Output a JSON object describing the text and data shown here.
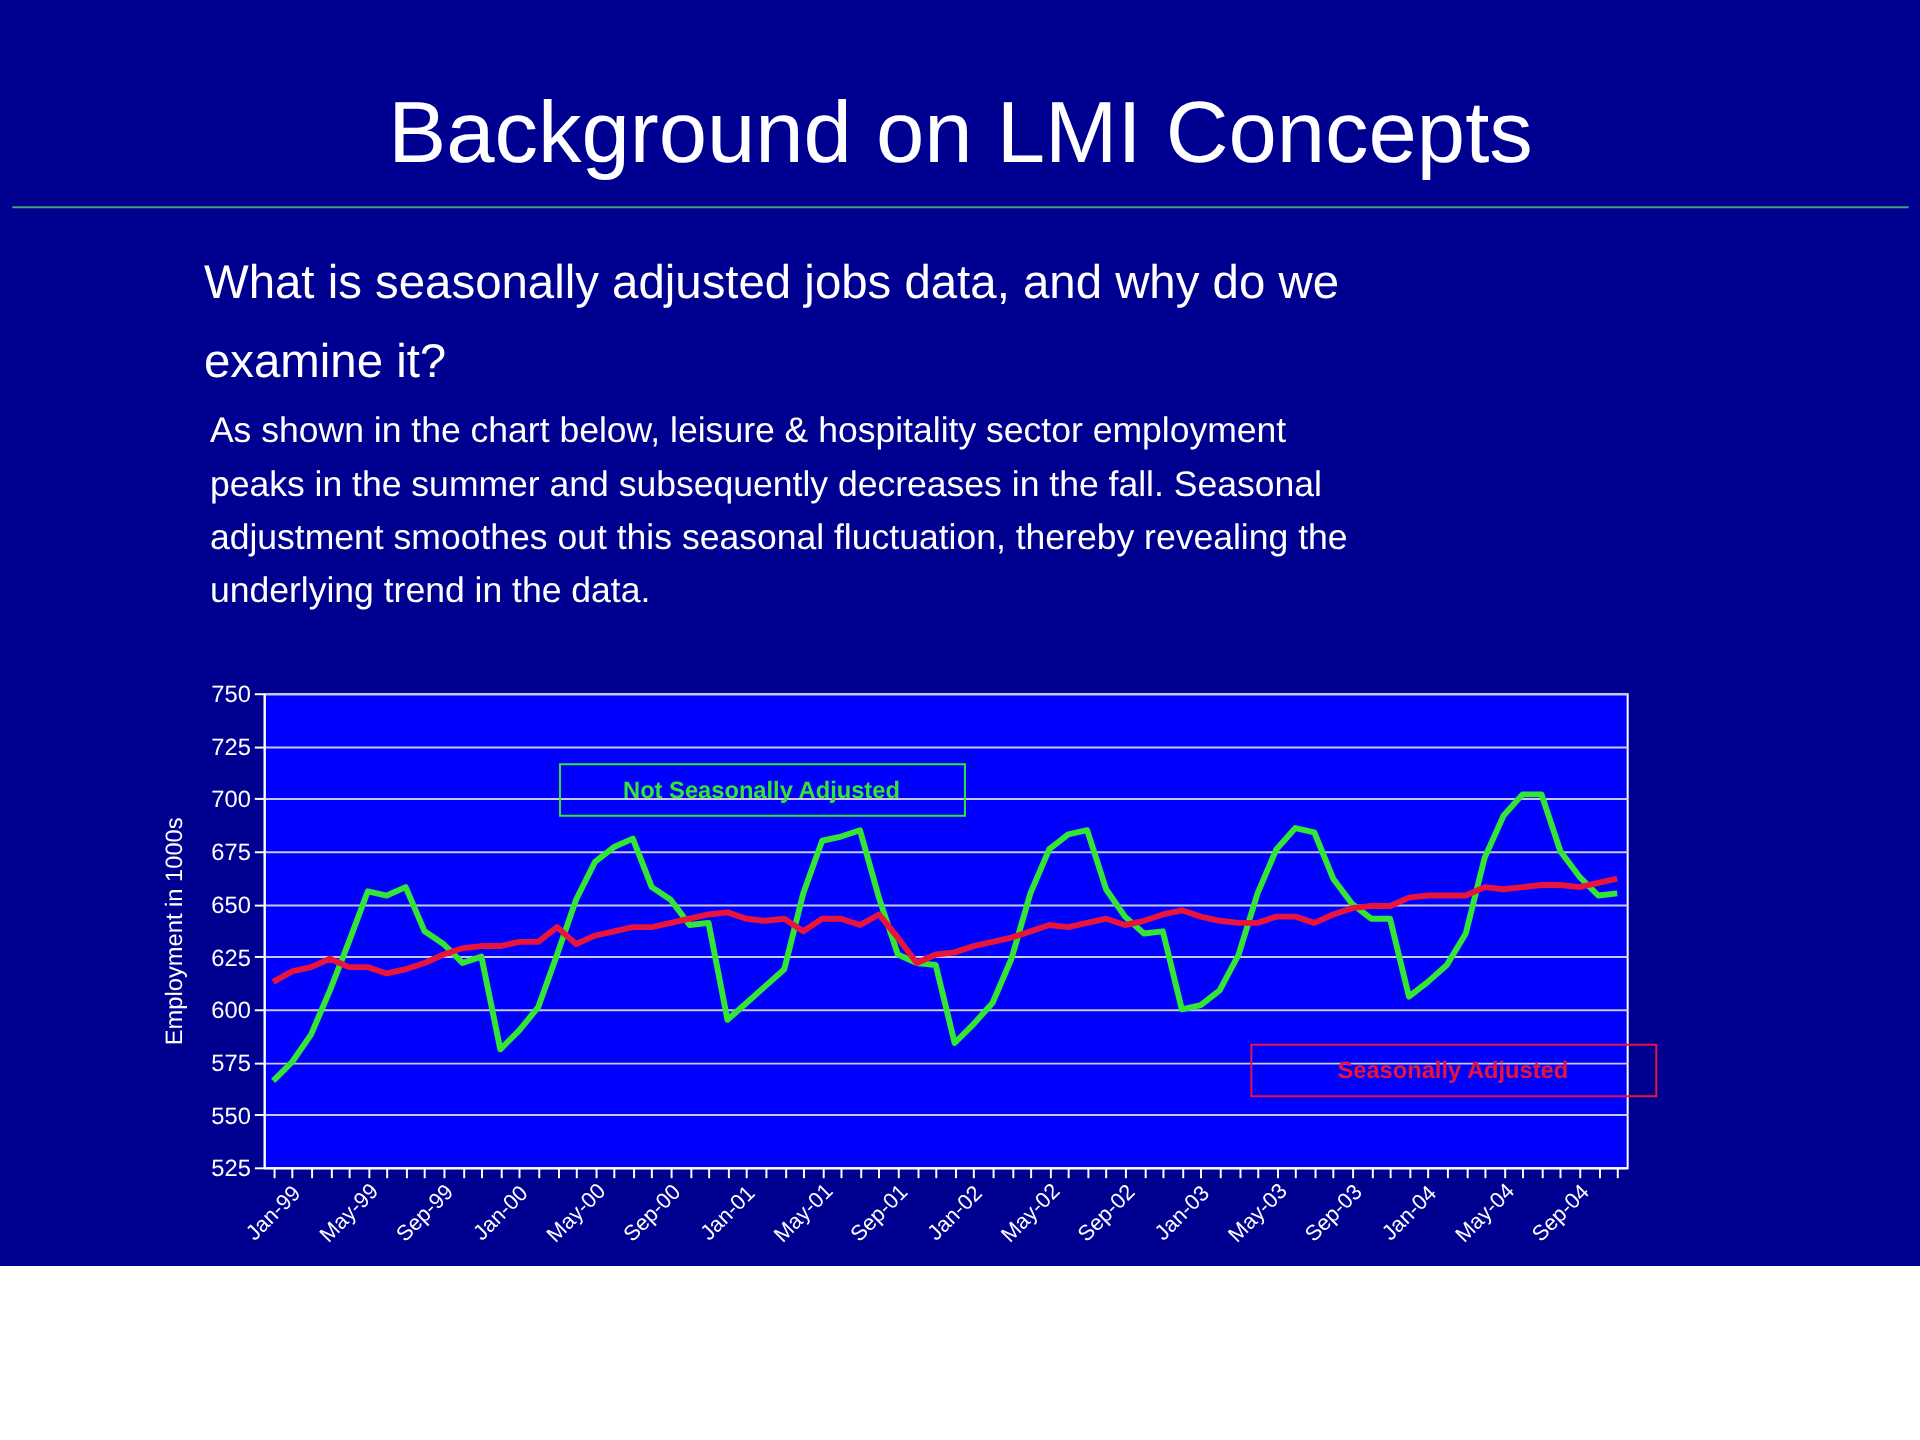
{
  "chart_data": {
    "type": "line",
    "title": "Background on LMI Concepts",
    "subtitle": "What is seasonally adjusted jobs data, and why do we examine it?",
    "annotations": [
      "As shown in the chart below, leisure & hospitality sector employment peaks in the summer and subsequently decreases in the fall. Seasonal adjustment smoothes out this seasonal fluctuation, thereby revealing the underlying trend in the data."
    ],
    "ylabel": "Employment in 1000s",
    "categories": [
      "Jan-99",
      null,
      null,
      null,
      "May-99",
      null,
      null,
      null,
      "Sep-99",
      null,
      null,
      null,
      "Jan-00",
      null,
      null,
      null,
      "May-00",
      null,
      null,
      null,
      "Sep-00",
      null,
      null,
      null,
      "Jan-01",
      null,
      null,
      null,
      "May-01",
      null,
      null,
      null,
      "Sep-01",
      null,
      null,
      null,
      "Jan-02",
      null,
      null,
      null,
      "May-02",
      null,
      null,
      null,
      "Sep-02",
      null,
      null,
      null,
      "Jan-03",
      null,
      null,
      null,
      "May-03",
      null,
      null,
      null,
      "Sep-03",
      null,
      null,
      null,
      "Jan-04",
      null,
      null,
      null,
      "May-04",
      null,
      null,
      null,
      "Sep-04",
      null,
      null,
      null
    ],
    "series": [
      {
        "name": "Not Seasonally Adjusted",
        "color": "#33e633",
        "values": [
          566,
          575,
          588,
          609,
          632,
          656,
          654,
          658,
          637,
          631,
          622,
          625,
          581,
          590,
          601,
          626,
          652,
          670,
          677,
          681,
          658,
          652,
          640,
          641,
          595,
          603,
          611,
          619,
          655,
          680,
          682,
          685,
          653,
          626,
          622,
          621,
          584,
          593,
          603,
          624,
          655,
          676,
          683,
          685,
          657,
          644,
          636,
          637,
          600,
          602,
          609,
          626,
          655,
          676,
          686,
          684,
          662,
          650,
          643,
          643,
          606,
          613,
          621,
          636,
          672,
          692,
          702,
          702,
          675,
          663,
          654,
          655
        ]
      },
      {
        "name": "Seasonally Adjusted",
        "color": "#e8143c",
        "values": [
          613,
          618,
          620,
          624,
          620,
          620,
          617,
          619,
          622,
          626,
          629,
          630,
          630,
          632,
          632,
          639,
          631,
          635,
          637,
          639,
          639,
          641,
          643,
          645,
          646,
          643,
          642,
          643,
          637,
          643,
          643,
          640,
          645,
          634,
          622,
          626,
          627,
          630,
          632,
          634,
          637,
          640,
          639,
          641,
          643,
          640,
          642,
          645,
          647,
          644,
          642,
          641,
          641,
          644,
          644,
          641,
          645,
          648,
          649,
          649,
          653,
          654,
          654,
          654,
          658,
          657,
          658,
          659,
          659,
          658,
          660,
          662
        ]
      }
    ],
    "ylim": [
      525,
      750
    ],
    "yticks": [
      525,
      550,
      575,
      600,
      625,
      650,
      675,
      700,
      725,
      750
    ],
    "grid": "y",
    "legend": false,
    "marker": "none",
    "line_style": "solid"
  }
}
